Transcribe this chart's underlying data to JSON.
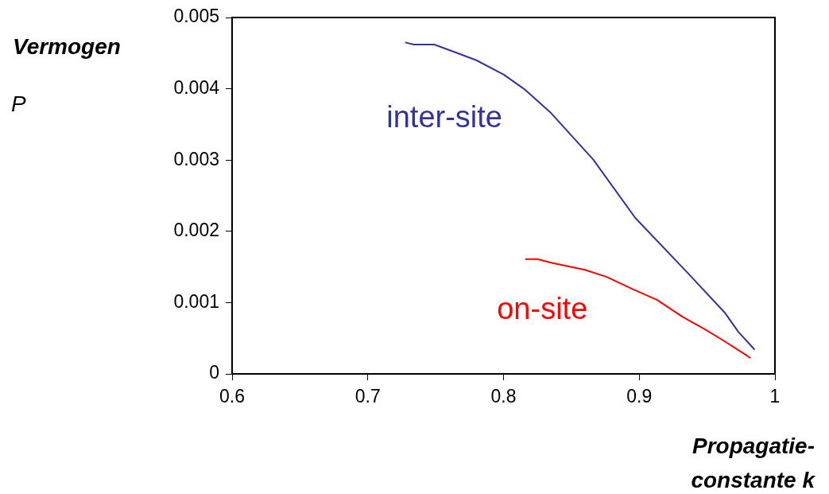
{
  "chart_data": {
    "type": "line",
    "xlabel": "Propagatie-constante k",
    "ylabel": "Vermogen P",
    "xlim": [
      0.6,
      1
    ],
    "xticks": [
      0.6,
      0.7,
      0.8,
      0.9,
      1
    ],
    "ylim": [
      0,
      0.005
    ],
    "yticks": [
      0,
      0.001,
      0.002,
      0.003,
      0.004,
      0.005
    ],
    "grid": false,
    "legend": false,
    "marker": "none",
    "line_style": "solid",
    "series": [
      {
        "name": "inter-site",
        "color": "#333399",
        "x": [
          0.7275,
          0.734,
          0.749,
          0.766,
          0.78,
          0.8,
          0.815,
          0.835,
          0.866,
          0.897,
          0.936,
          0.963,
          0.973,
          0.985
        ],
        "values": [
          0.00465,
          0.00462,
          0.00462,
          0.0045,
          0.0044,
          0.0042,
          0.004,
          0.00366,
          0.00301,
          0.00219,
          0.00141,
          0.00086,
          0.00059,
          0.00034
        ]
      },
      {
        "name": "on-site",
        "color": "#ff0000",
        "x": [
          0.816,
          0.825,
          0.835,
          0.86,
          0.876,
          0.895,
          0.913,
          0.932,
          0.948,
          0.961,
          0.979,
          0.982
        ],
        "values": [
          0.00161,
          0.00161,
          0.00156,
          0.00146,
          0.00136,
          0.00119,
          0.00104,
          0.0008,
          0.00063,
          0.00048,
          0.00026,
          0.00022
        ]
      }
    ]
  }
}
